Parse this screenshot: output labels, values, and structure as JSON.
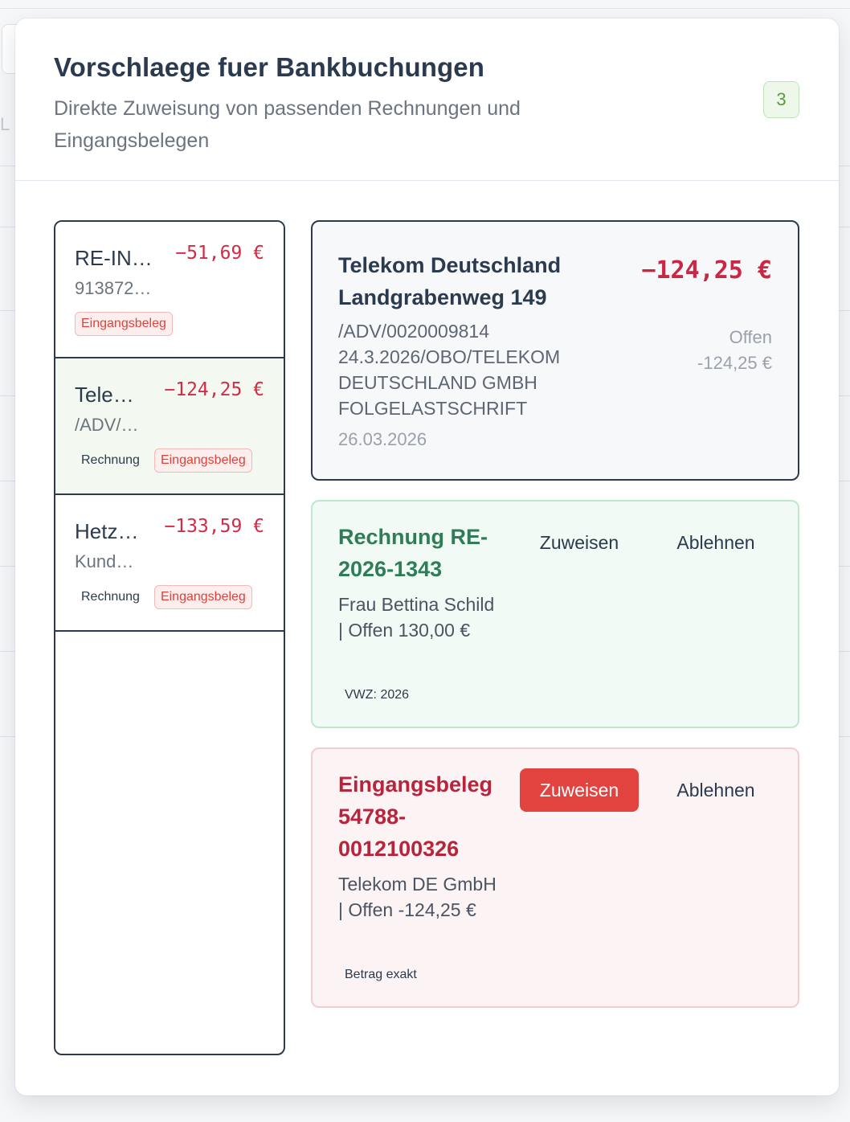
{
  "modal": {
    "title": "Vorschlaege fuer Bankbuchungen",
    "subtitle": "Direkte Zuweisung von passenden Rechnungen und Eingangsbelegen",
    "count": "3"
  },
  "transactions": [
    {
      "name": "RE-IN…",
      "amount": "−51,69 €",
      "ref": "913872…",
      "tags": [
        "Eingangsbeleg"
      ]
    },
    {
      "name": "Tele…",
      "amount": "−124,25 €",
      "ref": "/ADV/…",
      "tags": [
        "Rechnung",
        "Eingangsbeleg"
      ]
    },
    {
      "name": "Hetz…",
      "amount": "−133,59 €",
      "ref": "Kund…",
      "tags": [
        "Rechnung",
        "Eingangsbeleg"
      ]
    }
  ],
  "detail": {
    "name": "Telekom Deutschland Landgrabenweg 149",
    "reference": "/ADV/0020009814 24.3.2026/OBO/TELEKOM DEUTSCHLAND GMBH FOLGELASTSCHRIFT",
    "date": "26.03.2026",
    "amount": "−124,25 €",
    "status": "Offen",
    "open_amount": "-124,25 €"
  },
  "suggestions": [
    {
      "title": "Rechnung RE-2026-1343",
      "info": "Frau Bettina Schild | Offen 130,00 €",
      "note": "VWZ: 2026",
      "assign_label": "Zuweisen",
      "reject_label": "Ablehnen",
      "color": "#2e7d57"
    },
    {
      "title": "Eingangsbeleg 54788-0012100326",
      "info": "Telekom DE GmbH | Offen -124,25 €",
      "note": "Betrag exakt",
      "assign_label": "Zuweisen",
      "reject_label": "Ablehnen",
      "color": "#b8243c"
    }
  ],
  "colors": {
    "accent_red": "#e3433f",
    "amount_red": "#d42a45",
    "badge_green": "#5a9a3d"
  }
}
